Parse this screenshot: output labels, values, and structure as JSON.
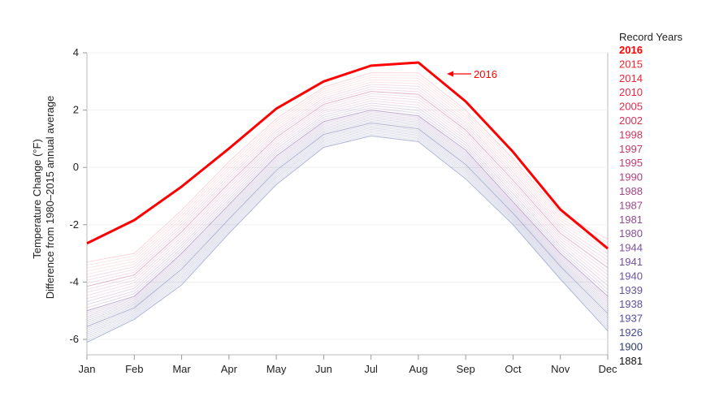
{
  "chart_data": {
    "type": "line",
    "title": "",
    "xlabel": "",
    "ylabel": [
      "Temperature Change (°F)",
      "Difference from 1980–2015 annual average"
    ],
    "categories": [
      "Jan",
      "Feb",
      "Mar",
      "Apr",
      "May",
      "Jun",
      "Jul",
      "Aug",
      "Sep",
      "Oct",
      "Nov",
      "Dec"
    ],
    "ylim": [
      -6.5,
      4
    ],
    "yticks": [
      4,
      2,
      0,
      -2,
      -4,
      -6
    ],
    "grid": true,
    "highlight_series": {
      "name": "2016",
      "color": "#ff0000",
      "values": [
        -2.65,
        -1.84,
        -0.67,
        0.66,
        2.05,
        3.0,
        3.55,
        3.66,
        2.3,
        0.54,
        -1.47,
        -2.83
      ]
    },
    "annotation": {
      "text": "2016",
      "color": "#ff0000",
      "month": "Aug"
    },
    "background_series": [
      {
        "color": "#5a6aa8",
        "values": [
          -6.1,
          -5.3,
          -4.1,
          -2.3,
          -0.6,
          0.7,
          1.1,
          0.9,
          -0.4,
          -2.0,
          -3.9,
          -5.7
        ]
      },
      {
        "color": "#5d5a9e",
        "values": [
          -5.55,
          -4.9,
          -3.55,
          -1.8,
          -0.1,
          1.15,
          1.55,
          1.35,
          0.1,
          -1.6,
          -3.45,
          -5.1
        ]
      },
      {
        "color": "#7b4fa0",
        "values": [
          -5.0,
          -4.5,
          -3.0,
          -1.3,
          0.4,
          1.6,
          2.0,
          1.8,
          0.6,
          -1.2,
          -3.0,
          -4.5
        ]
      },
      {
        "color": "#c66a9a",
        "values": [
          -4.15,
          -3.75,
          -2.25,
          -0.55,
          1.05,
          2.2,
          2.65,
          2.55,
          1.3,
          -0.45,
          -2.3,
          -3.5
        ]
      },
      {
        "color": "#f08a9a",
        "values": [
          -3.3,
          -3.0,
          -1.5,
          0.2,
          1.7,
          2.8,
          3.3,
          3.3,
          2.0,
          0.3,
          -1.6,
          -2.5
        ]
      }
    ],
    "legend": {
      "title": "Record Years",
      "placement": "right",
      "items": [
        {
          "label": "2016",
          "color": "#ff0000",
          "bold": true
        },
        {
          "label": "2015",
          "color": "#f5202e"
        },
        {
          "label": "2014",
          "color": "#f0243a"
        },
        {
          "label": "2010",
          "color": "#e82842"
        },
        {
          "label": "2005",
          "color": "#de2c4c"
        },
        {
          "label": "2002",
          "color": "#d63054"
        },
        {
          "label": "1998",
          "color": "#cc3460"
        },
        {
          "label": "1997",
          "color": "#c43868"
        },
        {
          "label": "1995",
          "color": "#bb3c70"
        },
        {
          "label": "1990",
          "color": "#b0407a"
        },
        {
          "label": "1988",
          "color": "#a64482"
        },
        {
          "label": "1987",
          "color": "#9c488a"
        },
        {
          "label": "1981",
          "color": "#924c92"
        },
        {
          "label": "1980",
          "color": "#884e98"
        },
        {
          "label": "1944",
          "color": "#7e50a0"
        },
        {
          "label": "1941",
          "color": "#7450a4"
        },
        {
          "label": "1940",
          "color": "#6c50a6"
        },
        {
          "label": "1939",
          "color": "#6450a6"
        },
        {
          "label": "1938",
          "color": "#5c50a4"
        },
        {
          "label": "1937",
          "color": "#544ea0"
        },
        {
          "label": "1926",
          "color": "#464a94"
        },
        {
          "label": "1900",
          "color": "#283c6c"
        },
        {
          "label": "1881",
          "color": "#111111"
        }
      ]
    }
  }
}
